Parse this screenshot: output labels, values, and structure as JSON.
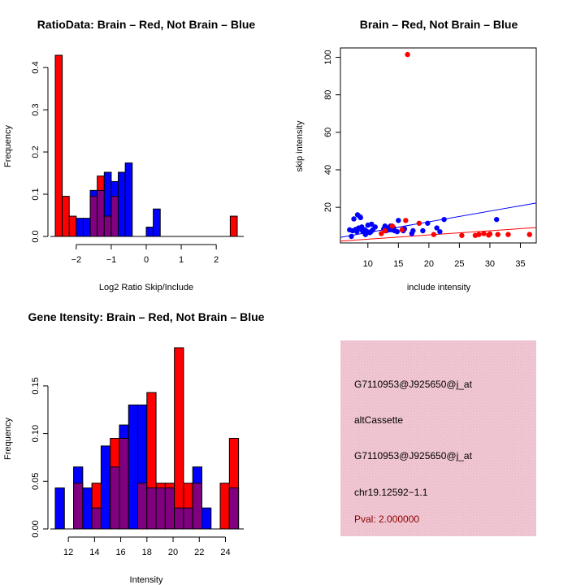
{
  "colors": {
    "brain": "#ff0000",
    "not_brain": "#0000ff",
    "overlap": "#800080",
    "info_panel_bg": "#eec4d0",
    "pval_text": "#8b0000"
  },
  "chart_data": [
    {
      "id": "ratio-hist",
      "type": "bar",
      "title": "RatioData: Brain – Red, Not Brain – Blue",
      "xlabel": "Log2 Ratio Skip/Include",
      "ylabel": "Frequency",
      "xlim": [
        -2.6,
        2.6
      ],
      "ylim": [
        0,
        0.43
      ],
      "xticks": [
        -2,
        -1,
        0,
        1,
        2
      ],
      "xtick_labels": [
        "−2",
        "−1",
        "0",
        "1",
        "2"
      ],
      "yticks": [
        0.0,
        0.1,
        0.2,
        0.3,
        0.4
      ],
      "ytick_labels": [
        "0.0",
        "0.1",
        "0.2",
        "0.3",
        "0.4"
      ],
      "bin_edges": [
        -2.6,
        -2.4,
        -2.2,
        -2.0,
        -1.8,
        -1.6,
        -1.4,
        -1.2,
        -1.0,
        -0.8,
        -0.6,
        -0.4,
        -0.2,
        0.0,
        0.2,
        0.4,
        0.6,
        0.8,
        1.0,
        1.2,
        1.4,
        1.6,
        1.8,
        2.0,
        2.2,
        2.4,
        2.6
      ],
      "series": [
        {
          "name": "Brain",
          "color": "red",
          "values": [
            0.429,
            0.095,
            0.048,
            0,
            0,
            0.095,
            0.143,
            0.048,
            0.095,
            0,
            0,
            0,
            0,
            0,
            0,
            0,
            0,
            0,
            0,
            0,
            0,
            0,
            0,
            0,
            0,
            0.048
          ]
        },
        {
          "name": "Not Brain",
          "color": "blue",
          "values": [
            0,
            0,
            0,
            0.043,
            0.043,
            0.109,
            0.109,
            0.152,
            0.13,
            0.152,
            0.174,
            0,
            0,
            0.022,
            0.065,
            0,
            0,
            0,
            0,
            0,
            0,
            0,
            0,
            0,
            0,
            0
          ]
        }
      ]
    },
    {
      "id": "intensity-scatter",
      "type": "scatter",
      "title": "Brain – Red, Not Brain – Blue",
      "xlabel": "include intensity",
      "ylabel": "skip intensity",
      "xlim": [
        5.5,
        37.6
      ],
      "ylim": [
        1,
        105
      ],
      "xticks": [
        10,
        15,
        20,
        25,
        30,
        35
      ],
      "yticks": [
        20,
        40,
        60,
        80,
        100
      ],
      "series": [
        {
          "name": "Not Brain",
          "color": "blue",
          "points": [
            [
              7.0,
              8
            ],
            [
              7.3,
              4.5
            ],
            [
              7.7,
              13.8
            ],
            [
              7.5,
              7.5
            ],
            [
              8.0,
              8.2
            ],
            [
              8.2,
              7
            ],
            [
              8.5,
              9
            ],
            [
              8.3,
              16
            ],
            [
              8.7,
              15
            ],
            [
              8.8,
              14.5
            ],
            [
              9.0,
              8
            ],
            [
              9.2,
              7
            ],
            [
              9.0,
              9.5
            ],
            [
              9.5,
              8
            ],
            [
              9.6,
              5.5
            ],
            [
              9.8,
              7.2
            ],
            [
              10.0,
              10.5
            ],
            [
              10.3,
              6.5
            ],
            [
              10.6,
              11
            ],
            [
              10.8,
              8
            ],
            [
              10.5,
              7
            ],
            [
              11.2,
              9.5
            ],
            [
              12.6,
              8.5
            ],
            [
              12.8,
              10
            ],
            [
              13.0,
              7.5
            ],
            [
              13.3,
              9
            ],
            [
              13.5,
              8
            ],
            [
              13.7,
              10
            ],
            [
              14.0,
              8
            ],
            [
              14.2,
              9
            ],
            [
              14.4,
              7.5
            ],
            [
              14.8,
              7
            ],
            [
              15.0,
              13
            ],
            [
              15.8,
              7.5
            ],
            [
              16.0,
              8.5
            ],
            [
              17.2,
              6
            ],
            [
              17.4,
              7.5
            ],
            [
              19.0,
              7.5
            ],
            [
              19.8,
              11.5
            ],
            [
              21.3,
              9
            ],
            [
              21.8,
              7
            ],
            [
              22.5,
              13.5
            ],
            [
              31.1,
              13.5
            ]
          ]
        },
        {
          "name": "Brain",
          "color": "red",
          "points": [
            [
              16.5,
              101.5
            ],
            [
              12.2,
              6
            ],
            [
              12.8,
              7.5
            ],
            [
              14.0,
              10
            ],
            [
              15.6,
              8
            ],
            [
              16.2,
              13
            ],
            [
              18.4,
              11.5
            ],
            [
              20.8,
              5.5
            ],
            [
              25.4,
              5
            ],
            [
              27.6,
              5
            ],
            [
              28.2,
              5.5
            ],
            [
              29.0,
              6
            ],
            [
              29.8,
              5.2
            ],
            [
              30.0,
              5.8
            ],
            [
              31.3,
              5.5
            ],
            [
              33.0,
              5.5
            ],
            [
              36.5,
              5.5
            ]
          ]
        }
      ],
      "fit_lines": [
        {
          "name": "Not Brain fit",
          "color": "blue",
          "from": [
            5.5,
            4.0
          ],
          "to": [
            37.6,
            22.3
          ]
        },
        {
          "name": "Brain fit",
          "color": "red",
          "from": [
            5.5,
            2.0
          ],
          "to": [
            37.6,
            9.2
          ]
        }
      ]
    },
    {
      "id": "gene-intensity-hist",
      "type": "bar",
      "title": "Gene Itensity: Brain – Red, Not Brain – Blue",
      "xlabel": "Intensity",
      "ylabel": "Frequency",
      "xlim": [
        11,
        24.9
      ],
      "ylim": [
        0,
        0.19
      ],
      "xticks": [
        12,
        14,
        16,
        18,
        20,
        22,
        24
      ],
      "xtick_labels": [
        "12",
        "14",
        "16",
        "18",
        "20",
        "22",
        "24"
      ],
      "yticks": [
        0.0,
        0.05,
        0.1,
        0.15
      ],
      "ytick_labels": [
        "0.00",
        "0.05",
        "0.10",
        "0.15"
      ],
      "bin_edges": [
        11.0,
        11.7,
        12.4,
        13.1,
        13.8,
        14.5,
        15.2,
        15.9,
        16.6,
        17.3,
        18.0,
        18.7,
        19.4,
        20.1,
        20.8,
        21.5,
        22.2,
        22.9,
        23.6,
        24.3,
        25.0
      ],
      "series": [
        {
          "name": "Brain",
          "color": "red",
          "values": [
            0,
            0,
            0.048,
            0,
            0.048,
            0,
            0.095,
            0.095,
            0,
            0.048,
            0.143,
            0.048,
            0.048,
            0.19,
            0.048,
            0.048,
            0,
            0,
            0.048,
            0.095
          ]
        },
        {
          "name": "Not Brain",
          "color": "blue",
          "values": [
            0.043,
            0,
            0.065,
            0.043,
            0.022,
            0.087,
            0.065,
            0.109,
            0.13,
            0.13,
            0.043,
            0.043,
            0.043,
            0.022,
            0.022,
            0.065,
            0.022,
            0,
            0,
            0.043
          ]
        }
      ]
    }
  ],
  "info_panel": {
    "lines": [
      "G7110953@J925650@j_at",
      "altCassette",
      "G7110953@J925650@j_at",
      "chr19.12592−1.1"
    ],
    "pval": "Pval: 2.000000"
  }
}
